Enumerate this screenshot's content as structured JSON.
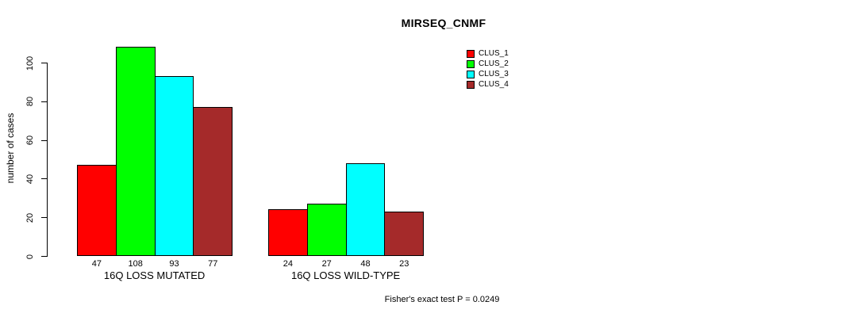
{
  "chart_data": {
    "type": "bar",
    "title": "MIRSEQ_CNMF",
    "ylabel": "number of cases",
    "xlabel": "",
    "categories": [
      "16Q LOSS MUTATED",
      "16Q LOSS WILD-TYPE"
    ],
    "series": [
      {
        "name": "CLUS_1",
        "color": "#ff0000",
        "values": [
          47,
          24
        ]
      },
      {
        "name": "CLUS_2",
        "color": "#00ff00",
        "values": [
          108,
          27
        ]
      },
      {
        "name": "CLUS_3",
        "color": "#00ffff",
        "values": [
          93,
          48
        ]
      },
      {
        "name": "CLUS_4",
        "color": "#a52a2a",
        "values": [
          77,
          23
        ]
      }
    ],
    "bar_value_labels": [
      [
        "47",
        "108",
        "93",
        "77"
      ],
      [
        "24",
        "27",
        "48",
        "23"
      ]
    ],
    "yticks": [
      "0",
      "20",
      "40",
      "60",
      "80",
      "100"
    ],
    "ylim": [
      0,
      100
    ],
    "grid": false,
    "legend_position": "top-right",
    "annotation": "Fisher's exact test P = 0.0249",
    "background_color": "#ffffff",
    "text_color": "#000000"
  }
}
